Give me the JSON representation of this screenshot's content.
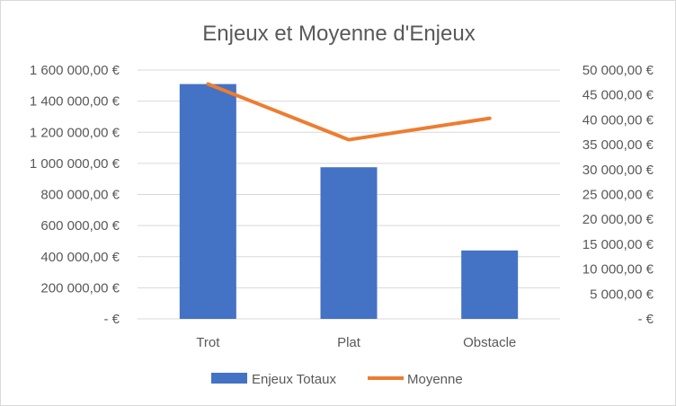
{
  "chart_data": {
    "type": "bar",
    "title": "Enjeux et Moyenne d'Enjeux",
    "categories": [
      "Trot",
      "Plat",
      "Obstacle"
    ],
    "series": [
      {
        "name": "Enjeux Totaux",
        "type": "bar",
        "axis": "left",
        "color": "#4472c4",
        "values": [
          1510000,
          975000,
          440000
        ]
      },
      {
        "name": "Moyenne",
        "type": "line",
        "axis": "right",
        "color": "#ed7d31",
        "values": [
          47200,
          36000,
          40300
        ]
      }
    ],
    "y_left": {
      "min": 0,
      "max": 1600000,
      "step": 200000,
      "tick_labels": [
        "-  €",
        "200 000,00 €",
        "400 000,00 €",
        "600 000,00 €",
        "800 000,00 €",
        "1 000 000,00 €",
        "1 200 000,00 €",
        "1 400 000,00 €",
        "1 600 000,00 €"
      ]
    },
    "y_right": {
      "min": 0,
      "max": 50000,
      "step": 5000,
      "tick_labels": [
        "-  €",
        "5 000,00 €",
        "10 000,00 €",
        "15 000,00 €",
        "20 000,00 €",
        "25 000,00 €",
        "30 000,00 €",
        "35 000,00 €",
        "40 000,00 €",
        "45 000,00 €",
        "50 000,00 €"
      ]
    },
    "grid": true,
    "legend": "bottom",
    "gridline_color": "#d9d9d9",
    "text_color": "#595959"
  }
}
